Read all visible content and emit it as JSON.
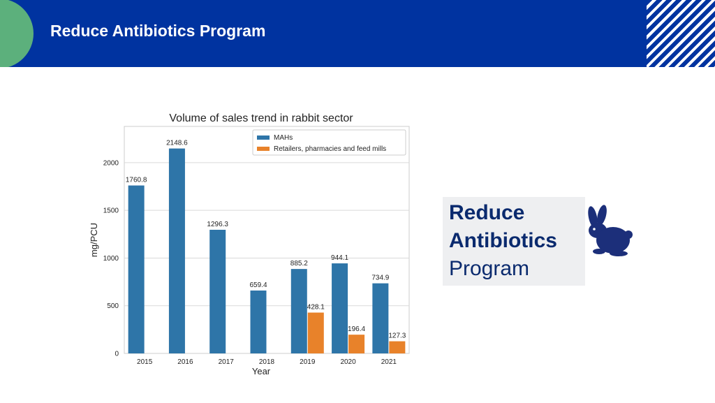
{
  "header": {
    "title": "Reduce Antibiotics Program",
    "colors": {
      "bar": "#0033a0",
      "accent": "#5cb07c"
    }
  },
  "callout": {
    "line1": "Reduce",
    "line2": "Antibiotics",
    "line3": "Program",
    "icon": "rabbit-icon"
  },
  "chart_data": {
    "type": "bar",
    "title": "Volume of sales trend in rabbit sector",
    "xlabel": "Year",
    "ylabel": "mg/PCU",
    "categories": [
      "2015",
      "2016",
      "2017",
      "2018",
      "2019",
      "2020",
      "2021"
    ],
    "series": [
      {
        "name": "MAHs",
        "color": "#2e75a8",
        "values": [
          1760.8,
          2148.6,
          1296.3,
          659.4,
          885.2,
          944.1,
          734.9
        ]
      },
      {
        "name": "Retailers, pharmacies and feed mills",
        "color": "#e8822a",
        "values": [
          null,
          null,
          null,
          null,
          428.1,
          196.4,
          127.3
        ]
      }
    ],
    "ylim": [
      0,
      2380
    ],
    "yticks": [
      0,
      500,
      1000,
      1500,
      2000
    ],
    "grid": true,
    "legend": "top-right"
  }
}
